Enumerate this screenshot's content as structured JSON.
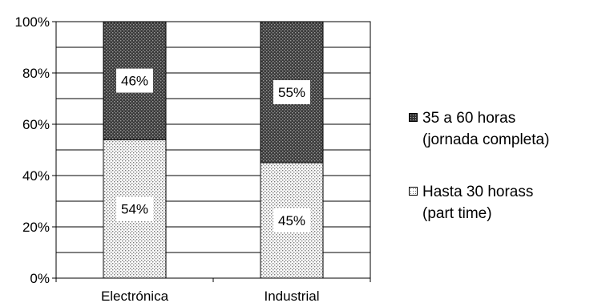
{
  "chart_data": {
    "type": "bar",
    "stacked": true,
    "percent": true,
    "categories": [
      "Electrónica",
      "Industrial"
    ],
    "series": [
      {
        "name": "Hasta 30 horass\n(part time)",
        "values": [
          54,
          45
        ],
        "labels": [
          "54%",
          "45%"
        ],
        "pattern": "light-dots",
        "color": "#d9d9d9"
      },
      {
        "name": "35 a 60 horas\n(jornada completa)",
        "values": [
          46,
          55
        ],
        "labels": [
          "46%",
          "55%"
        ],
        "pattern": "dark-dots",
        "color": "#404040"
      }
    ],
    "yticks": [
      "0%",
      "20%",
      "40%",
      "60%",
      "80%",
      "100%"
    ],
    "ylim": [
      0,
      100
    ],
    "grid": true,
    "legend_position": "right"
  }
}
